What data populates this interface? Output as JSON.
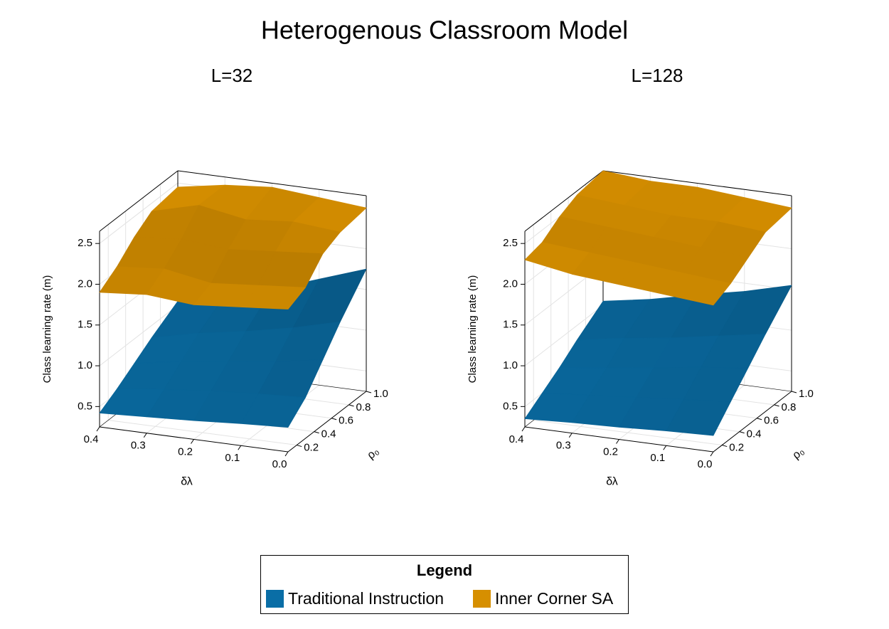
{
  "title": "Heterogenous Classroom Model",
  "legend_title": "Legend",
  "chart_data": [
    {
      "type": "surface3d",
      "title": "L=32",
      "xlabel": "δλ",
      "ylabel": "ρ₀",
      "zlabel": "Class learning rate (m)",
      "x": [
        0,
        0.1,
        0.2,
        0.3,
        0.4
      ],
      "y": [
        0.1,
        0.3,
        0.5,
        0.7,
        1.0
      ],
      "xlim": [
        0,
        0.4
      ],
      "ylim": [
        0.1,
        1.0
      ],
      "zlim": [
        0.25,
        2.65
      ],
      "xticks": [
        {
          "value": 0,
          "label": "0.0"
        },
        0.1,
        0.2,
        0.3,
        0.4
      ],
      "yticks": [
        0.2,
        0.4,
        0.6,
        0.8,
        {
          "value": 1,
          "label": "1.0"
        }
      ],
      "zticks": [
        0.5,
        {
          "value": 1,
          "label": "1.0"
        },
        1.5,
        {
          "value": 2,
          "label": "2.0"
        },
        2.5
      ],
      "grid": true,
      "series": [
        {
          "name": "Traditional Instruction",
          "color": "#0a6ea6",
          "values": [
            [
              0.55,
              0.52,
              0.48,
              0.45,
              0.42
            ],
            [
              0.75,
              0.72,
              0.68,
              0.62,
              0.55
            ],
            [
              1.05,
              0.95,
              0.88,
              0.8,
              0.7
            ],
            [
              1.35,
              1.2,
              1.08,
              0.98,
              0.85
            ],
            [
              1.75,
              1.55,
              1.35,
              1.2,
              1.05
            ]
          ]
        },
        {
          "name": "Inner Corner SA",
          "color": "#d68f00",
          "values": [
            [
              2.0,
              1.95,
              1.9,
              1.95,
              1.9
            ],
            [
              2.1,
              2.05,
              2.0,
              2.1,
              2.05
            ],
            [
              2.35,
              2.3,
              2.25,
              2.3,
              2.25
            ],
            [
              2.45,
              2.5,
              2.45,
              2.55,
              2.4
            ],
            [
              2.5,
              2.55,
              2.6,
              2.55,
              2.45
            ]
          ]
        }
      ]
    },
    {
      "type": "surface3d",
      "title": "L=128",
      "xlabel": "δλ",
      "ylabel": "ρ₀",
      "zlabel": "Class learning rate (m)",
      "x": [
        0,
        0.1,
        0.2,
        0.3,
        0.4
      ],
      "y": [
        0.1,
        0.3,
        0.5,
        0.7,
        1.0
      ],
      "xlim": [
        0,
        0.4
      ],
      "ylim": [
        0.1,
        1.0
      ],
      "zlim": [
        0.25,
        2.65
      ],
      "xticks": [
        {
          "value": 0,
          "label": "0.0"
        },
        0.1,
        0.2,
        0.3,
        0.4
      ],
      "yticks": [
        0.2,
        0.4,
        0.6,
        0.8,
        {
          "value": 1,
          "label": "1.0"
        }
      ],
      "zticks": [
        0.5,
        {
          "value": 1,
          "label": "1.0"
        },
        1.5,
        {
          "value": 2,
          "label": "2.0"
        },
        2.5
      ],
      "grid": true,
      "series": [
        {
          "name": "Traditional Instruction",
          "color": "#0a6ea6",
          "values": [
            [
              0.45,
              0.43,
              0.4,
              0.38,
              0.35
            ],
            [
              0.7,
              0.65,
              0.6,
              0.55,
              0.5
            ],
            [
              0.95,
              0.88,
              0.8,
              0.72,
              0.65
            ],
            [
              1.2,
              1.1,
              1.0,
              0.92,
              0.82
            ],
            [
              1.55,
              1.4,
              1.28,
              1.15,
              1.05
            ]
          ]
        },
        {
          "name": "Inner Corner SA",
          "color": "#d68f00",
          "values": [
            [
              2.05,
              2.1,
              2.15,
              2.2,
              2.3
            ],
            [
              2.15,
              2.2,
              2.25,
              2.3,
              2.35
            ],
            [
              2.3,
              2.35,
              2.4,
              2.45,
              2.5
            ],
            [
              2.45,
              2.5,
              2.5,
              2.55,
              2.6
            ],
            [
              2.5,
              2.55,
              2.6,
              2.6,
              2.65
            ]
          ]
        }
      ]
    }
  ]
}
